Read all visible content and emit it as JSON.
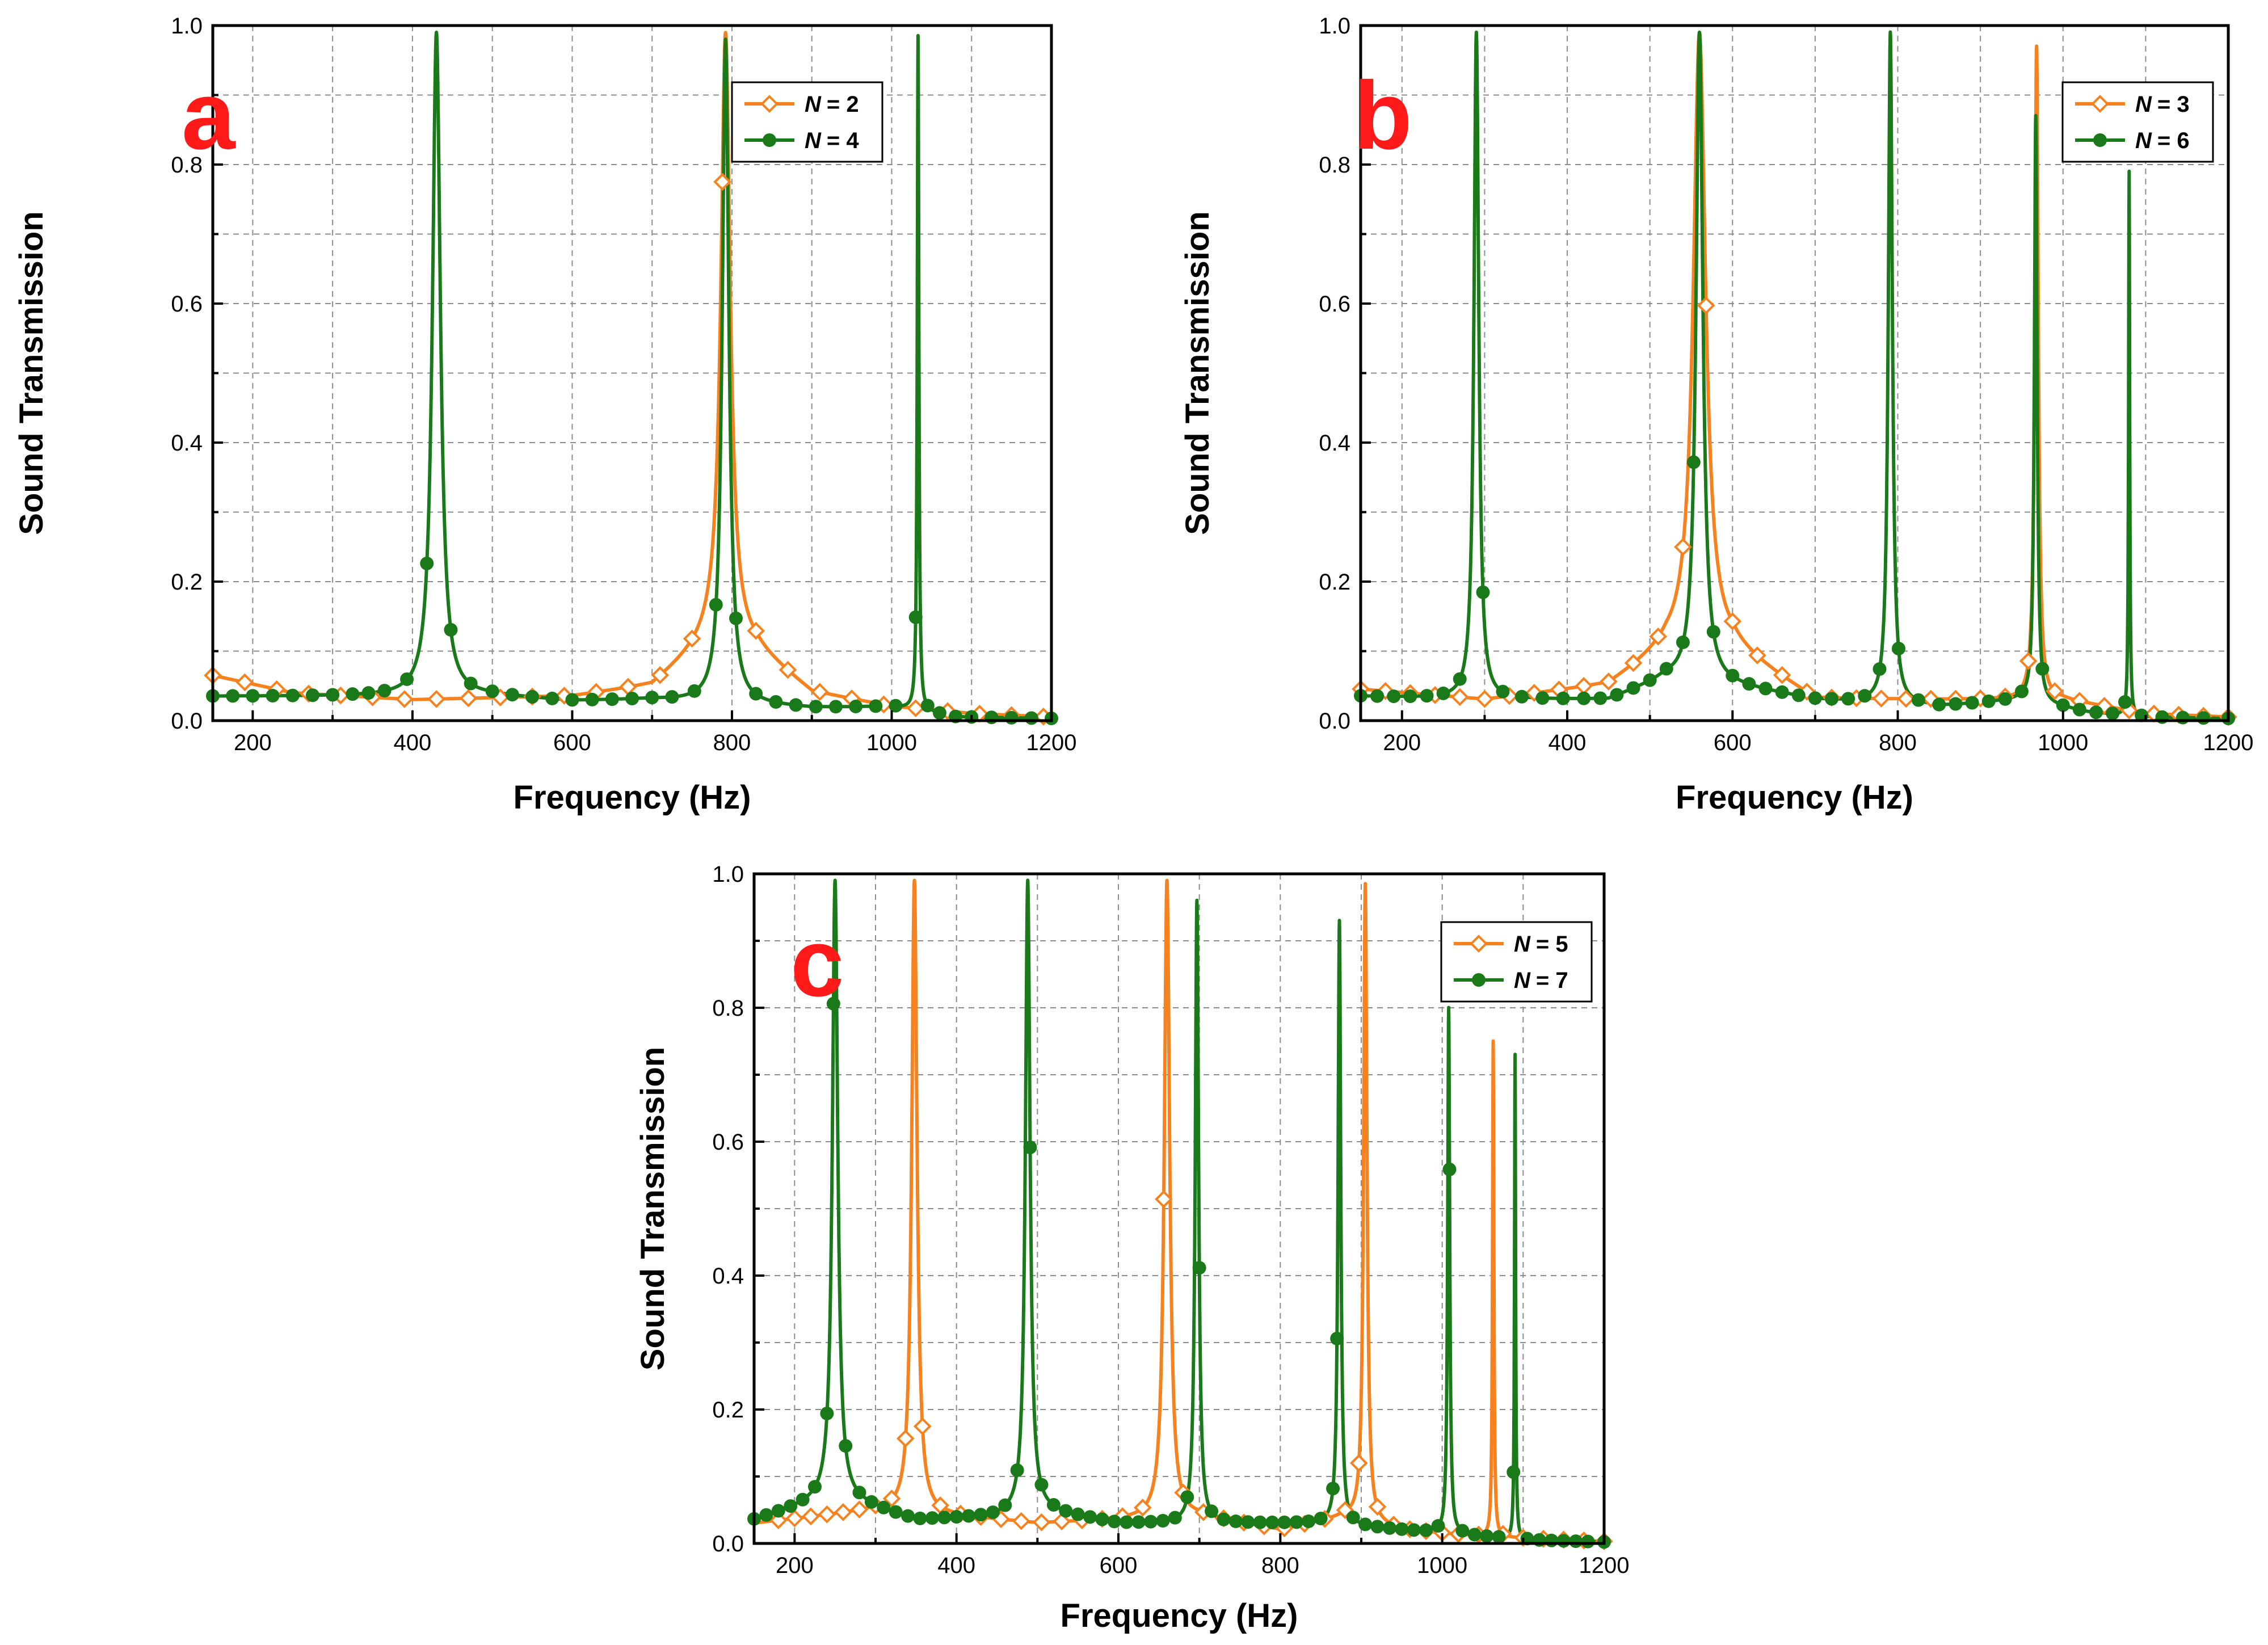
{
  "chart_data": [
    {
      "panel": "a",
      "type": "line",
      "xlabel": "Frequency (Hz)",
      "ylabel": "Sound Transmission",
      "xlim": [
        150,
        1200
      ],
      "ylim": [
        0.0,
        1.0
      ],
      "xticks": [
        200,
        400,
        600,
        800,
        1000,
        1200
      ],
      "yticks": [
        "0.0",
        "0.2",
        "0.4",
        "0.6",
        "0.8",
        "1.0"
      ],
      "grid": true,
      "legend_position": "top-right",
      "series": [
        {
          "name": "N = 2",
          "legend_symbol": "N",
          "legend_value": "= 2",
          "color": "#f5821f",
          "marker": "open-diamond",
          "baseline": [
            [
              150,
              0.065
            ],
            [
              250,
              0.04
            ],
            [
              400,
              0.03
            ],
            [
              600,
              0.035
            ],
            [
              700,
              0.05
            ],
            [
              780,
              0.12
            ],
            [
              830,
              0.1
            ],
            [
              900,
              0.04
            ],
            [
              1000,
              0.02
            ],
            [
              1100,
              0.01
            ],
            [
              1200,
              0.005
            ]
          ],
          "peaks": [
            {
              "f": 792,
              "h": 0.99,
              "w": 7
            }
          ],
          "marker_x": [
            150,
            190,
            230,
            270,
            310,
            350,
            390,
            430,
            470,
            510,
            550,
            590,
            630,
            670,
            710,
            750,
            788,
            830,
            870,
            910,
            950,
            990,
            1030,
            1070,
            1110,
            1150,
            1190
          ]
        },
        {
          "name": "N = 4",
          "legend_symbol": "N",
          "legend_value": "= 4",
          "color": "#1a7a1a",
          "marker": "filled-circle",
          "baseline": [
            [
              150,
              0.035
            ],
            [
              300,
              0.035
            ],
            [
              500,
              0.035
            ],
            [
              600,
              0.028
            ],
            [
              700,
              0.03
            ],
            [
              900,
              0.018
            ],
            [
              1000,
              0.02
            ],
            [
              1080,
              0.005
            ],
            [
              1200,
              0.003
            ]
          ],
          "peaks": [
            {
              "f": 430,
              "h": 0.99,
              "w": 6
            },
            {
              "f": 792,
              "h": 0.98,
              "w": 5
            },
            {
              "f": 1033,
              "h": 0.985,
              "w": 1.2
            }
          ],
          "marker_x": [
            150,
            175,
            200,
            225,
            250,
            275,
            300,
            325,
            345,
            365,
            393,
            418,
            448,
            473,
            500,
            525,
            550,
            575,
            600,
            625,
            650,
            675,
            700,
            725,
            753,
            780,
            805,
            830,
            855,
            880,
            905,
            930,
            955,
            980,
            1005,
            1030,
            1045,
            1060,
            1080,
            1100,
            1125,
            1150,
            1175,
            1200
          ]
        }
      ]
    },
    {
      "panel": "b",
      "type": "line",
      "xlabel": "Frequency (Hz)",
      "ylabel": "Sound Transmission",
      "xlim": [
        150,
        1200
      ],
      "ylim": [
        0.0,
        1.0
      ],
      "xticks": [
        200,
        400,
        600,
        800,
        1000,
        1200
      ],
      "yticks": [
        "0.0",
        "0.2",
        "0.4",
        "0.6",
        "0.8",
        "1.0"
      ],
      "grid": true,
      "legend_position": "top-right",
      "series": [
        {
          "name": "N = 3",
          "legend_symbol": "N",
          "legend_value": "= 3",
          "color": "#f5821f",
          "marker": "open-diamond",
          "baseline": [
            [
              150,
              0.045
            ],
            [
              300,
              0.03
            ],
            [
              450,
              0.05
            ],
            [
              520,
              0.1
            ],
            [
              600,
              0.1
            ],
            [
              700,
              0.03
            ],
            [
              900,
              0.03
            ],
            [
              1000,
              0.03
            ],
            [
              1100,
              0.01
            ],
            [
              1200,
              0.005
            ]
          ],
          "peaks": [
            {
              "f": 560,
              "h": 0.99,
              "w": 9
            },
            {
              "f": 968,
              "h": 0.97,
              "w": 2.5
            }
          ],
          "marker_x": [
            150,
            180,
            210,
            240,
            270,
            300,
            330,
            360,
            390,
            420,
            450,
            480,
            510,
            540,
            568,
            600,
            630,
            660,
            690,
            720,
            750,
            780,
            810,
            840,
            870,
            900,
            930,
            958,
            990,
            1020,
            1050,
            1080,
            1110,
            1140,
            1170,
            1200
          ]
        },
        {
          "name": "N = 6",
          "legend_symbol": "N",
          "legend_value": "= 6",
          "color": "#1a7a1a",
          "marker": "filled-circle",
          "baseline": [
            [
              150,
              0.035
            ],
            [
              300,
              0.03
            ],
            [
              450,
              0.03
            ],
            [
              520,
              0.06
            ],
            [
              600,
              0.05
            ],
            [
              700,
              0.03
            ],
            [
              850,
              0.02
            ],
            [
              950,
              0.03
            ],
            [
              1030,
              0.012
            ],
            [
              1090,
              0.005
            ],
            [
              1200,
              0.003
            ]
          ],
          "peaks": [
            {
              "f": 290,
              "h": 0.99,
              "w": 3.5
            },
            {
              "f": 560,
              "h": 0.99,
              "w": 5
            },
            {
              "f": 791,
              "h": 0.99,
              "w": 3
            },
            {
              "f": 967,
              "h": 0.87,
              "w": 2
            },
            {
              "f": 1080,
              "h": 0.79,
              "w": 0.8
            }
          ],
          "marker_x": [
            150,
            170,
            190,
            210,
            230,
            250,
            270,
            298,
            322,
            345,
            370,
            395,
            420,
            440,
            460,
            480,
            500,
            520,
            540,
            553,
            577,
            600,
            620,
            640,
            660,
            680,
            700,
            720,
            740,
            760,
            778,
            801,
            825,
            850,
            870,
            890,
            910,
            930,
            950,
            975,
            1000,
            1020,
            1040,
            1060,
            1075,
            1095,
            1120,
            1145,
            1170,
            1200
          ]
        }
      ]
    },
    {
      "panel": "c",
      "type": "line",
      "xlabel": "Frequency (Hz)",
      "ylabel": "Sound Transmission",
      "xlim": [
        150,
        1200
      ],
      "ylim": [
        0.0,
        1.0
      ],
      "xticks": [
        200,
        400,
        600,
        800,
        1000,
        1200
      ],
      "yticks": [
        "0.0",
        "0.2",
        "0.4",
        "0.6",
        "0.8",
        "1.0"
      ],
      "grid": true,
      "legend_position": "top-right",
      "series": [
        {
          "name": "N = 5",
          "legend_symbol": "N",
          "legend_value": "= 5",
          "color": "#f5821f",
          "marker": "open-diamond",
          "baseline": [
            [
              150,
              0.03
            ],
            [
              300,
              0.05
            ],
            [
              400,
              0.04
            ],
            [
              500,
              0.03
            ],
            [
              600,
              0.035
            ],
            [
              700,
              0.04
            ],
            [
              800,
              0.02
            ],
            [
              880,
              0.04
            ],
            [
              950,
              0.02
            ],
            [
              1050,
              0.01
            ],
            [
              1200,
              0.003
            ]
          ],
          "peaks": [
            {
              "f": 348,
              "h": 0.99,
              "w": 4
            },
            {
              "f": 660,
              "h": 0.99,
              "w": 4
            },
            {
              "f": 905,
              "h": 0.985,
              "w": 2.5
            },
            {
              "f": 1063,
              "h": 0.75,
              "w": 1
            }
          ],
          "marker_x": [
            180,
            200,
            220,
            240,
            260,
            280,
            300,
            320,
            337,
            358,
            380,
            405,
            430,
            455,
            480,
            505,
            530,
            555,
            580,
            605,
            630,
            656,
            680,
            705,
            730,
            755,
            780,
            805,
            830,
            855,
            880,
            897,
            920,
            940,
            960,
            980,
            1000,
            1020,
            1045,
            1075,
            1100,
            1125,
            1150,
            1175,
            1200
          ]
        },
        {
          "name": "N = 7",
          "legend_symbol": "N",
          "legend_value": "= 7",
          "color": "#1a7a1a",
          "marker": "filled-circle",
          "baseline": [
            [
              150,
              0.035
            ],
            [
              250,
              0.07
            ],
            [
              350,
              0.035
            ],
            [
              450,
              0.04
            ],
            [
              500,
              0.05
            ],
            [
              600,
              0.03
            ],
            [
              750,
              0.03
            ],
            [
              850,
              0.03
            ],
            [
              950,
              0.02
            ],
            [
              1050,
              0.01
            ],
            [
              1100,
              0.005
            ],
            [
              1200,
              0.002
            ]
          ],
          "peaks": [
            {
              "f": 250,
              "h": 0.99,
              "w": 4
            },
            {
              "f": 488,
              "h": 0.99,
              "w": 3.5
            },
            {
              "f": 697,
              "h": 0.96,
              "w": 2.5
            },
            {
              "f": 873,
              "h": 0.93,
              "w": 2
            },
            {
              "f": 1008,
              "h": 0.8,
              "w": 1.5
            },
            {
              "f": 1090,
              "h": 0.73,
              "w": 0.8
            }
          ],
          "marker_x": [
            150,
            165,
            180,
            195,
            210,
            225,
            240,
            248,
            263,
            280,
            295,
            310,
            325,
            340,
            355,
            370,
            385,
            400,
            415,
            430,
            445,
            460,
            475,
            491,
            505,
            520,
            535,
            550,
            565,
            580,
            595,
            610,
            625,
            640,
            655,
            670,
            685,
            700,
            715,
            730,
            745,
            760,
            775,
            790,
            805,
            820,
            835,
            850,
            865,
            870,
            890,
            905,
            920,
            935,
            950,
            965,
            980,
            995,
            1009,
            1025,
            1040,
            1055,
            1070,
            1088,
            1105,
            1120,
            1135,
            1150,
            1165,
            1180,
            1200
          ]
        }
      ]
    }
  ]
}
